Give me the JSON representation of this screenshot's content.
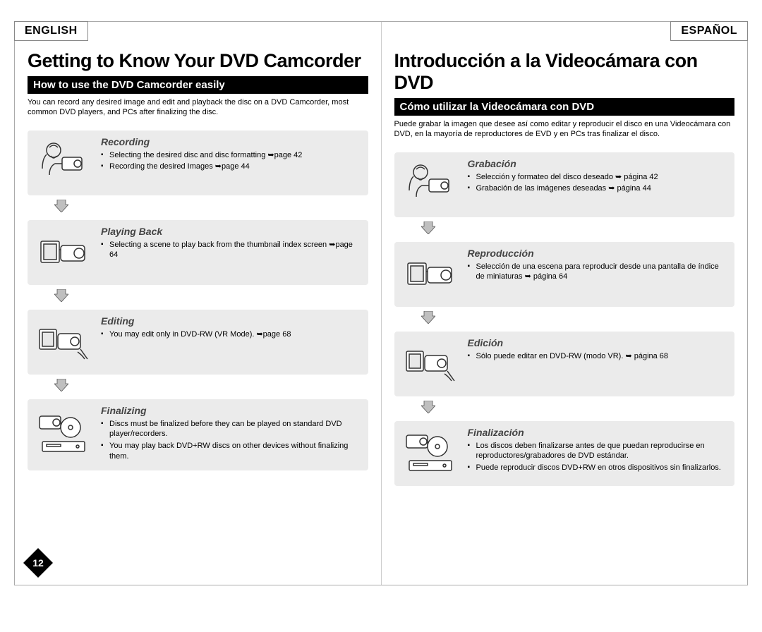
{
  "page_number": "12",
  "left": {
    "lang": "ENGLISH",
    "title": "Getting to Know Your DVD Camcorder",
    "section": "How to use the DVD Camcorder easily",
    "intro": "You can record any desired image and edit and playback the disc on a DVD Camcorder, most common DVD players, and PCs after finalizing the disc.",
    "steps": [
      {
        "title": "Recording",
        "items": [
          "Selecting the desired disc and disc formatting ➥page 42",
          "Recording the desired Images ➥page 44"
        ]
      },
      {
        "title": "Playing Back",
        "items": [
          "Selecting a scene to play back from the thumbnail index screen ➥page 64"
        ]
      },
      {
        "title": "Editing",
        "items": [
          "You may edit only in DVD-RW (VR Mode). ➥page 68"
        ]
      },
      {
        "title": "Finalizing",
        "items": [
          "Discs must be finalized before they can be played on standard DVD player/recorders.",
          "You may play back DVD+RW discs on other devices without finalizing them."
        ]
      }
    ]
  },
  "right": {
    "lang": "ESPAÑOL",
    "title": "Introducción a la Videocámara con DVD",
    "section": "Cómo utilizar la Videocámara con DVD",
    "intro": "Puede grabar la imagen que desee así como editar y reproducir el disco en una Videocámara con DVD, en la mayoría de reproductores de EVD y en PCs tras finalizar el disco.",
    "steps": [
      {
        "title": "Grabación",
        "items": [
          "Selección y formateo del disco deseado ➥ página 42",
          "Grabación de las imágenes deseadas ➥ página 44"
        ]
      },
      {
        "title": "Reproducción",
        "items": [
          "Selección de una escena para reproducir desde una pantalla de índice de miniaturas ➥ página 64"
        ]
      },
      {
        "title": "Edición",
        "items": [
          "Sólo puede editar en DVD-RW (modo VR). ➥ página 68"
        ]
      },
      {
        "title": "Finalización",
        "items": [
          "Los discos deben finalizarse antes de que puedan reproducirse en reproductores/grabadores de DVD estándar.",
          "Puede reproducir discos DVD+RW en otros dispositivos sin finalizarlos."
        ]
      }
    ]
  },
  "colors": {
    "step_bg": "#ebebeb",
    "bar_bg": "#000000",
    "bar_fg": "#ffffff",
    "step_title": "#444444",
    "arrow_fill": "#bfbfbf",
    "arrow_stroke": "#555555"
  }
}
